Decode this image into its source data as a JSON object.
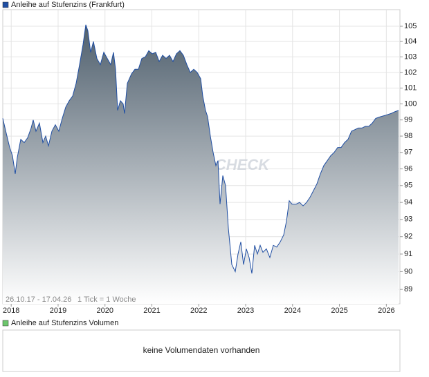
{
  "chart_data": {
    "type": "line",
    "log": true,
    "grid": true,
    "area": true,
    "range_note": "26.10.17 - 17.04.26",
    "tick_note": "1 Tick = 1 Woche",
    "watermark": "CHECK",
    "x": [
      2017.82,
      2017.909,
      2017.968,
      2018.027,
      2018.086,
      2018.13,
      2018.204,
      2018.277,
      2018.351,
      2018.425,
      2018.469,
      2018.528,
      2018.602,
      2018.676,
      2018.735,
      2018.794,
      2018.868,
      2018.941,
      2019.015,
      2019.089,
      2019.163,
      2019.237,
      2019.31,
      2019.384,
      2019.458,
      2019.532,
      2019.591,
      2019.635,
      2019.694,
      2019.753,
      2019.827,
      2019.901,
      2019.974,
      2020.048,
      2020.122,
      2020.181,
      2020.225,
      2020.27,
      2020.329,
      2020.388,
      2020.417,
      2020.476,
      2020.565,
      2020.638,
      2020.712,
      2020.786,
      2020.86,
      2020.934,
      2021.007,
      2021.081,
      2021.155,
      2021.229,
      2021.302,
      2021.376,
      2021.45,
      2021.524,
      2021.598,
      2021.671,
      2021.745,
      2021.819,
      2021.893,
      2021.966,
      2022.04,
      2022.085,
      2022.144,
      2022.188,
      2022.247,
      2022.306,
      2022.365,
      2022.409,
      2022.453,
      2022.512,
      2022.571,
      2022.63,
      2022.704,
      2022.778,
      2022.837,
      2022.896,
      2022.955,
      2023.014,
      2023.073,
      2023.132,
      2023.191,
      2023.25,
      2023.309,
      2023.368,
      2023.442,
      2023.516,
      2023.59,
      2023.663,
      2023.737,
      2023.811,
      2023.87,
      2023.929,
      2023.988,
      2024.077,
      2024.151,
      2024.224,
      2024.298,
      2024.372,
      2024.446,
      2024.519,
      2024.593,
      2024.667,
      2024.741,
      2024.814,
      2024.888,
      2024.962,
      2025.036,
      2025.109,
      2025.183,
      2025.257,
      2025.331,
      2025.405,
      2025.478,
      2025.552,
      2025.626,
      2025.7,
      2025.774,
      2025.877,
      2025.995,
      2026.099,
      2026.172,
      2026.261
    ],
    "series": [
      {
        "name": "Anleihe auf Stufenzins (Frankfurt)",
        "color": "#1f4ea3",
        "values": [
          99.1,
          98.0,
          97.3,
          96.8,
          95.7,
          96.7,
          97.8,
          97.6,
          97.9,
          98.5,
          99.0,
          98.3,
          98.8,
          97.6,
          98.0,
          97.4,
          98.3,
          98.7,
          98.3,
          99.1,
          99.8,
          100.2,
          100.5,
          101.3,
          102.5,
          103.8,
          105.1,
          104.7,
          103.3,
          104.0,
          102.9,
          102.5,
          103.3,
          102.9,
          102.5,
          103.3,
          102.2,
          99.6,
          100.2,
          100.0,
          99.4,
          101.3,
          101.9,
          102.2,
          102.2,
          102.9,
          103.0,
          103.4,
          103.2,
          103.3,
          102.7,
          103.1,
          102.9,
          103.1,
          102.7,
          103.2,
          103.4,
          103.1,
          102.5,
          102.0,
          102.2,
          102.0,
          101.6,
          100.5,
          99.6,
          99.2,
          98.0,
          97.0,
          96.2,
          96.5,
          93.9,
          95.6,
          95.0,
          92.5,
          90.4,
          90.0,
          91.0,
          91.7,
          90.4,
          91.3,
          90.8,
          89.9,
          91.5,
          91.0,
          91.5,
          91.1,
          91.3,
          90.8,
          91.5,
          91.4,
          91.7,
          92.1,
          92.9,
          94.1,
          93.9,
          93.9,
          94.0,
          93.8,
          94.0,
          94.3,
          94.7,
          95.1,
          95.7,
          96.2,
          96.5,
          96.8,
          97.0,
          97.3,
          97.3,
          97.6,
          97.8,
          98.3,
          98.4,
          98.5,
          98.5,
          98.6,
          98.6,
          98.8,
          99.1,
          99.2,
          99.3,
          99.4,
          99.5,
          99.6
        ]
      }
    ],
    "xlim": [
      2017.82,
      2026.29
    ],
    "xticks": [
      2018,
      2019,
      2020,
      2021,
      2022,
      2023,
      2024,
      2025,
      2026
    ],
    "ylim": [
      88.2,
      106.1
    ],
    "yticks": [
      89,
      90,
      91,
      92,
      93,
      94,
      95,
      96,
      97,
      98,
      99,
      100,
      101,
      102,
      103,
      104,
      105
    ]
  },
  "volume": {
    "name": "Anleihe auf Stufenzins Volumen",
    "color": "#6cc66c",
    "message": "keine Volumendaten vorhanden"
  }
}
